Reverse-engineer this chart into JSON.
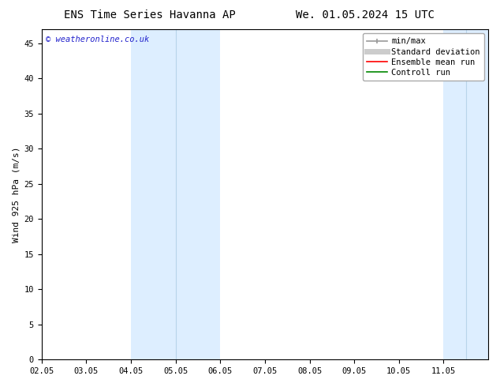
{
  "title_left": "ENS Time Series Havanna AP",
  "title_right": "We. 01.05.2024 15 UTC",
  "ylabel": "Wind 925 hPa (m/s)",
  "watermark": "© weatheronline.co.uk",
  "xlim": [
    0,
    10
  ],
  "ylim": [
    0,
    47
  ],
  "yticks": [
    0,
    5,
    10,
    15,
    20,
    25,
    30,
    35,
    40,
    45
  ],
  "xtick_labels": [
    "02.05",
    "03.05",
    "04.05",
    "05.05",
    "06.05",
    "07.05",
    "08.05",
    "09.05",
    "10.05",
    "11.05"
  ],
  "xtick_positions": [
    0,
    1,
    2,
    3,
    4,
    5,
    6,
    7,
    8,
    9
  ],
  "shaded_bands": [
    {
      "xmin": 2,
      "xmax": 4,
      "color": "#ddeeff"
    },
    {
      "xmin": 9,
      "xmax": 10,
      "color": "#ddeeff"
    }
  ],
  "vertical_lines": [
    {
      "x": 3,
      "color": "#b8d4ea",
      "lw": 0.8
    },
    {
      "x": 9.5,
      "color": "#b8d4ea",
      "lw": 0.8
    }
  ],
  "legend_entries": [
    {
      "label": "min/max",
      "color": "#999999",
      "lw": 1.2,
      "style": "line_with_caps"
    },
    {
      "label": "Standard deviation",
      "color": "#cccccc",
      "lw": 5,
      "style": "thick"
    },
    {
      "label": "Ensemble mean run",
      "color": "#ff0000",
      "lw": 1.2,
      "style": "line"
    },
    {
      "label": "Controll run",
      "color": "#008800",
      "lw": 1.2,
      "style": "line"
    }
  ],
  "bg_color": "#ffffff",
  "plot_bg_color": "#ffffff",
  "font_color": "#000000",
  "watermark_color": "#2222cc",
  "title_fontsize": 10,
  "axis_label_fontsize": 8,
  "tick_fontsize": 7.5,
  "legend_fontsize": 7.5
}
